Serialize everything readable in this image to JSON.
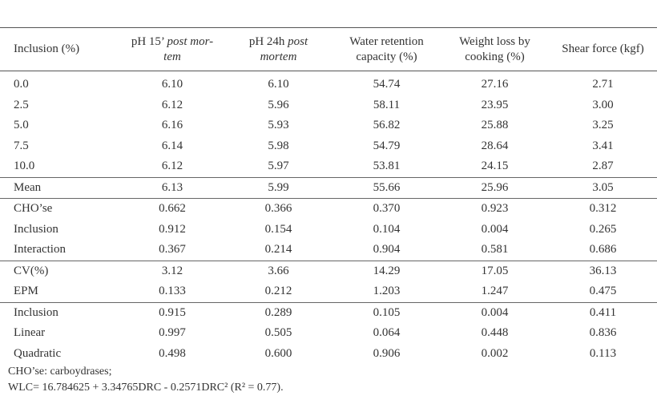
{
  "table": {
    "header": [
      [
        [
          {
            "text": "Inclusion (%)"
          }
        ]
      ],
      [
        [
          {
            "text": "pH 15’ "
          },
          {
            "text": "post mor-",
            "italic": true
          }
        ],
        [
          {
            "text": "tem",
            "italic": true
          }
        ]
      ],
      [
        [
          {
            "text": "pH 24h "
          },
          {
            "text": "post",
            "italic": true
          }
        ],
        [
          {
            "text": "mortem",
            "italic": true
          }
        ]
      ],
      [
        [
          {
            "text": "Water retention"
          }
        ],
        [
          {
            "text": "capacity (%)"
          }
        ]
      ],
      [
        [
          {
            "text": "Weight loss by"
          }
        ],
        [
          {
            "text": "cooking (%)"
          }
        ]
      ],
      [
        [
          {
            "text": "Shear force (kgf)"
          }
        ]
      ]
    ],
    "sections": [
      [
        [
          "0.0",
          "6.10",
          "6.10",
          "54.74",
          "27.16",
          "2.71"
        ],
        [
          "2.5",
          "6.12",
          "5.96",
          "58.11",
          "23.95",
          "3.00"
        ],
        [
          "5.0",
          "6.16",
          "5.93",
          "56.82",
          "25.88",
          "3.25"
        ],
        [
          "7.5",
          "6.14",
          "5.98",
          "54.79",
          "28.64",
          "3.41"
        ],
        [
          "10.0",
          "6.12",
          "5.97",
          "53.81",
          "24.15",
          "2.87"
        ]
      ],
      [
        [
          "Mean",
          "6.13",
          "5.99",
          "55.66",
          "25.96",
          "3.05"
        ]
      ],
      [
        [
          "CHO’se",
          "0.662",
          "0.366",
          "0.370",
          "0.923",
          "0.312"
        ],
        [
          "Inclusion",
          "0.912",
          "0.154",
          "0.104",
          "0.004",
          "0.265"
        ],
        [
          "Interaction",
          "0.367",
          "0.214",
          "0.904",
          "0.581",
          "0.686"
        ]
      ],
      [
        [
          "CV(%)",
          "3.12",
          "3.66",
          "14.29",
          "17.05",
          "36.13"
        ],
        [
          "EPM",
          "0.133",
          "0.212",
          "1.203",
          "1.247",
          "0.475"
        ]
      ],
      [
        [
          "Inclusion",
          "0.915",
          "0.289",
          "0.105",
          "0.004",
          "0.411"
        ],
        [
          "Linear",
          "0.997",
          "0.505",
          "0.064",
          "0.448",
          "0.836"
        ],
        [
          "Quadratic",
          "0.498",
          "0.600",
          "0.906",
          "0.002",
          "0.113"
        ]
      ]
    ]
  },
  "footnotes": [
    "CHO’se: carboydrases;",
    "WLC= 16.784625 + 3.34765DRC - 0.2571DRC² (R² = 0.77)."
  ]
}
